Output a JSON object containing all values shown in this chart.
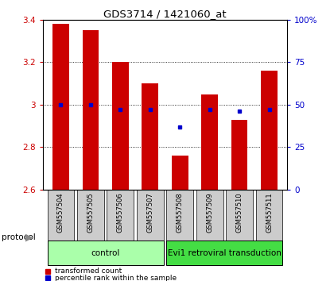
{
  "title": "GDS3714 / 1421060_at",
  "samples": [
    "GSM557504",
    "GSM557505",
    "GSM557506",
    "GSM557507",
    "GSM557508",
    "GSM557509",
    "GSM557510",
    "GSM557511"
  ],
  "transformed_counts": [
    3.38,
    3.35,
    3.2,
    3.1,
    2.76,
    3.05,
    2.93,
    3.16
  ],
  "percentile_ranks": [
    50,
    50,
    47,
    47,
    37,
    47,
    46,
    47
  ],
  "ylim_left": [
    2.6,
    3.4
  ],
  "ylim_right": [
    0,
    100
  ],
  "yticks_left": [
    2.6,
    2.8,
    3.0,
    3.2,
    3.4
  ],
  "ytick_labels_left": [
    "2.6",
    "2.8",
    "3",
    "3.2",
    "3.4"
  ],
  "yticks_right": [
    0,
    25,
    50,
    75,
    100
  ],
  "ytick_labels_right": [
    "0",
    "25",
    "50",
    "75",
    "100%"
  ],
  "bar_color": "#cc0000",
  "dot_color": "#0000cc",
  "bar_bottom": 2.6,
  "bar_width": 0.55,
  "groups": [
    {
      "label": "control",
      "indices": [
        0,
        1,
        2,
        3
      ],
      "color": "#aaffaa"
    },
    {
      "label": "Evi1 retroviral transduction",
      "indices": [
        4,
        5,
        6,
        7
      ],
      "color": "#44dd44"
    }
  ],
  "protocol_label": "protocol",
  "legend_items": [
    {
      "label": "transformed count",
      "color": "#cc0000"
    },
    {
      "label": "percentile rank within the sample",
      "color": "#0000cc"
    }
  ],
  "grid_color": "black",
  "grid_style": "dotted",
  "tick_label_color_left": "#cc0000",
  "tick_label_color_right": "#0000cc",
  "sample_box_color": "#cccccc",
  "figsize": [
    4.15,
    3.54
  ],
  "dpi": 100
}
